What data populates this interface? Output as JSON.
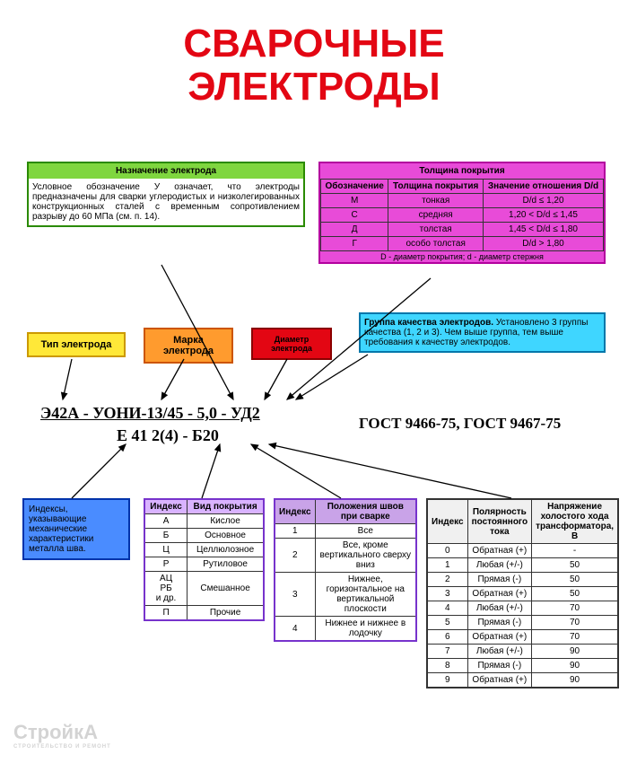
{
  "title_line1": "СВАРОЧНЫЕ",
  "title_line2": "ЭЛЕКТРОДЫ",
  "title_color": "#e30613",
  "box_purpose": {
    "header": "Назначение электрода",
    "body": "Условное обозначение У означает, что электроды предназначены для сварки углеродистых и низколегированных конструкционных сталей с временным сопротивлением разрыву до 60 МПа (см. п. 14).",
    "bg": "#7fd63f",
    "border": "#2a8a00"
  },
  "box_thickness": {
    "header": "Толщина покрытия",
    "bg": "#e84bd8",
    "border": "#b3009e",
    "cols": [
      "Обозначение",
      "Толщина покрытия",
      "Значение отношения D/d"
    ],
    "rows": [
      [
        "М",
        "тонкая",
        "D/d ≤ 1,20"
      ],
      [
        "С",
        "средняя",
        "1,20 < D/d ≤ 1,45"
      ],
      [
        "Д",
        "толстая",
        "1,45 < D/d ≤ 1,80"
      ],
      [
        "Г",
        "особо толстая",
        "D/d > 1,80"
      ]
    ],
    "footer": "D - диаметр покрытия; d - диаметр стержня"
  },
  "box_quality": {
    "text_bold": "Группа качества электродов.",
    "text": " Установлено 3 группы качества (1, 2 и 3). Чем выше группа, тем выше требования к качеству электродов.",
    "bg": "#3fd6ff",
    "border": "#0077aa"
  },
  "small_type": {
    "label": "Тип электрода",
    "bg": "#ffe838",
    "border": "#cc9900"
  },
  "small_brand": {
    "label": "Марка электрода",
    "bg": "#ff9b2e",
    "border": "#cc5500"
  },
  "small_diam": {
    "label": "Диаметр электрода",
    "bg": "#e30613",
    "border": "#8a0000",
    "text_color": "#000"
  },
  "code1": "Э42А - УОНИ-13/45 - 5,0 - УД2",
  "code2": "Е 41 2(4) - Б20",
  "gost": "ГОСТ 9466-75, ГОСТ 9467-75",
  "box_mech": {
    "text": "Индексы, указывающие механические характеристики металла шва.",
    "bg": "#4a8cff",
    "border": "#0033aa"
  },
  "table_coating": {
    "bg_header": "#d9b3ff",
    "border": "#7733cc",
    "cols": [
      "Индекс",
      "Вид покрытия"
    ],
    "rows": [
      [
        "А",
        "Кислое"
      ],
      [
        "Б",
        "Основное"
      ],
      [
        "Ц",
        "Целлюлозное"
      ],
      [
        "Р",
        "Рутиловое"
      ],
      [
        "АЦ\nРБ\nи др.",
        "Смешанное"
      ],
      [
        "П",
        "Прочие"
      ]
    ]
  },
  "table_position": {
    "bg_header": "#c9a3e8",
    "border": "#7733cc",
    "cols": [
      "Индекс",
      "Положения швов при сварке"
    ],
    "rows": [
      [
        "1",
        "Все"
      ],
      [
        "2",
        "Все, кроме вертикального сверху вниз"
      ],
      [
        "3",
        "Нижнее, горизонтальное на вертикальной плоскости"
      ],
      [
        "4",
        "Нижнее и нижнее в лодочку"
      ]
    ]
  },
  "table_polarity": {
    "bg_header": "#f0f0f0",
    "border": "#333",
    "cols": [
      "Индекс",
      "Полярность постоянного тока",
      "Напряжение холостого хода трансформатора, В"
    ],
    "rows": [
      [
        "0",
        "Обратная (+)",
        "-"
      ],
      [
        "1",
        "Любая (+/-)",
        "50"
      ],
      [
        "2",
        "Прямая (-)",
        "50"
      ],
      [
        "3",
        "Обратная (+)",
        "50"
      ],
      [
        "4",
        "Любая (+/-)",
        "70"
      ],
      [
        "5",
        "Прямая (-)",
        "70"
      ],
      [
        "6",
        "Обратная (+)",
        "70"
      ],
      [
        "7",
        "Любая (+/-)",
        "90"
      ],
      [
        "8",
        "Прямая (-)",
        "90"
      ],
      [
        "9",
        "Обратная (+)",
        "90"
      ]
    ]
  },
  "watermark": "СтройкА",
  "watermark_sub": "СТРОИТЕЛЬСТВО И РЕМОНТ"
}
